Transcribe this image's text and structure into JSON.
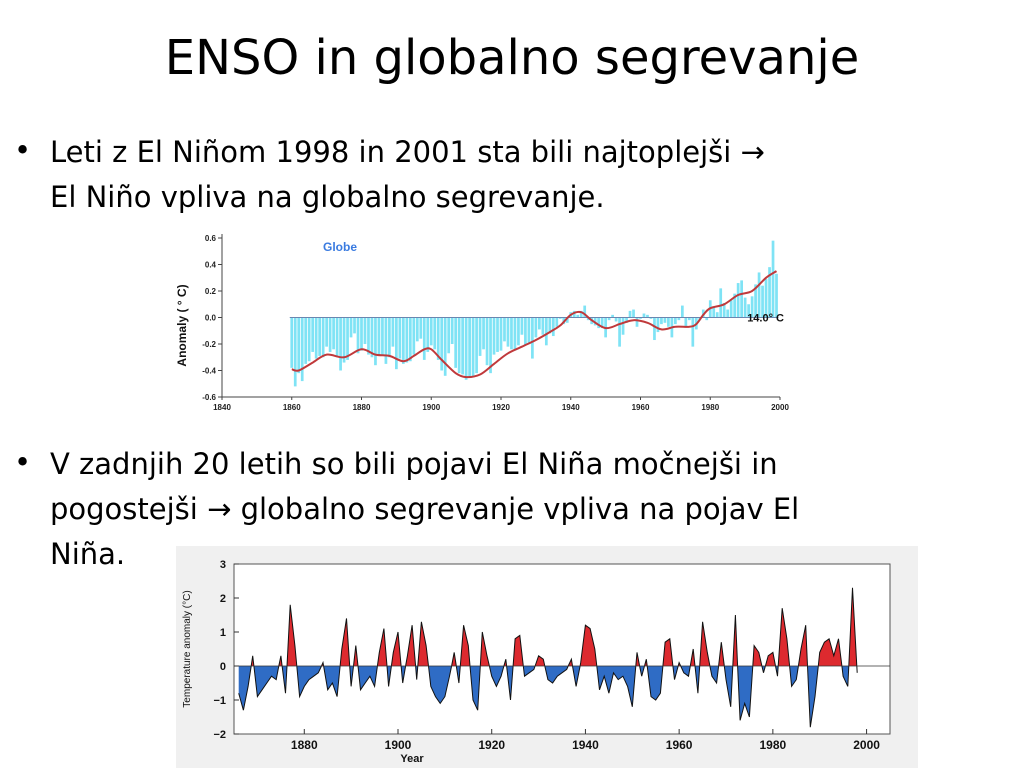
{
  "slide": {
    "title": "ENSO in globalno segrevanje",
    "bullets": [
      {
        "line1": "Leti z El Niñom 1998 in 2001 sta bili najtoplejši →",
        "line2": "El Niño vpliva na globalno segrevanje."
      },
      {
        "line1": "V zadnjih 20 letih so bili pojavi El Niña močnejši in",
        "line2": "pogostejši → globalno segrevanje vpliva na pojav El",
        "line3": "Niña."
      }
    ],
    "bullet_symbol": "•"
  },
  "chart_data": [
    {
      "type": "bar",
      "title": "Globe",
      "ylabel": "Anomaly  ( ° C)",
      "reference_label": "14.0° C",
      "xlim": [
        1840,
        2000
      ],
      "ylim": [
        -0.6,
        0.6
      ],
      "x_ticks": [
        1840,
        1860,
        1880,
        1900,
        1920,
        1940,
        1960,
        1980,
        2000
      ],
      "y_ticks": [
        -0.6,
        -0.4,
        -0.2,
        0.0,
        0.2,
        0.4,
        0.6
      ],
      "x_tick_labels": [
        "1840",
        "1860",
        "1880",
        "1900",
        "1920",
        "1940",
        "1960",
        "1980",
        "2000"
      ],
      "y_tick_labels": [
        "-0.6",
        "-0.4",
        "-0.2",
        "0.0",
        "0.2",
        "0.4",
        "0.6"
      ],
      "bar_color": "#7fe3f5",
      "smooth_color": "#c0393b",
      "bar_series": {
        "x_start": 1860,
        "x_end": 1999,
        "values": [
          -0.38,
          -0.52,
          -0.42,
          -0.48,
          -0.35,
          -0.33,
          -0.26,
          -0.31,
          -0.29,
          -0.3,
          -0.22,
          -0.26,
          -0.24,
          -0.3,
          -0.4,
          -0.34,
          -0.32,
          -0.15,
          -0.12,
          -0.27,
          -0.25,
          -0.2,
          -0.28,
          -0.3,
          -0.36,
          -0.28,
          -0.29,
          -0.35,
          -0.3,
          -0.22,
          -0.39,
          -0.31,
          -0.35,
          -0.34,
          -0.33,
          -0.28,
          -0.18,
          -0.16,
          -0.32,
          -0.26,
          -0.21,
          -0.24,
          -0.32,
          -0.4,
          -0.44,
          -0.27,
          -0.2,
          -0.38,
          -0.42,
          -0.43,
          -0.47,
          -0.45,
          -0.45,
          -0.42,
          -0.29,
          -0.24,
          -0.36,
          -0.42,
          -0.28,
          -0.26,
          -0.25,
          -0.18,
          -0.22,
          -0.24,
          -0.25,
          -0.21,
          -0.13,
          -0.21,
          -0.19,
          -0.31,
          -0.15,
          -0.09,
          -0.13,
          -0.21,
          -0.12,
          -0.14,
          -0.07,
          -0.01,
          -0.05,
          -0.04,
          0.04,
          0.05,
          0.02,
          0.05,
          0.09,
          -0.02,
          -0.05,
          -0.06,
          -0.08,
          -0.08,
          -0.15,
          -0.02,
          0.02,
          -0.03,
          -0.22,
          -0.13,
          -0.04,
          0.05,
          0.06,
          -0.07,
          -0.01,
          0.03,
          0.02,
          -0.01,
          -0.17,
          -0.11,
          -0.05,
          -0.04,
          -0.07,
          -0.15,
          -0.05,
          -0.02,
          0.09,
          -0.07,
          -0.02,
          -0.22,
          -0.09,
          -0.02,
          0.06,
          -0.02,
          0.13,
          0.08,
          0.04,
          0.22,
          0.11,
          0.06,
          0.13,
          0.18,
          0.26,
          0.28,
          0.15,
          0.1,
          0.16,
          0.25,
          0.34,
          0.24,
          0.29,
          0.38,
          0.58,
          0.33
        ]
      },
      "smooth_series": {
        "x": [
          1860,
          1862,
          1866,
          1870,
          1875,
          1880,
          1884,
          1888,
          1892,
          1895,
          1898,
          1900,
          1903,
          1907,
          1910,
          1914,
          1918,
          1922,
          1926,
          1930,
          1934,
          1937,
          1940,
          1943,
          1946,
          1950,
          1954,
          1958,
          1962,
          1966,
          1970,
          1974,
          1976,
          1978,
          1980,
          1984,
          1988,
          1992,
          1996,
          1999
        ],
        "y": [
          -0.39,
          -0.4,
          -0.34,
          -0.28,
          -0.3,
          -0.24,
          -0.28,
          -0.29,
          -0.33,
          -0.29,
          -0.24,
          -0.24,
          -0.32,
          -0.42,
          -0.45,
          -0.43,
          -0.35,
          -0.27,
          -0.22,
          -0.17,
          -0.11,
          -0.06,
          0.02,
          0.04,
          -0.02,
          -0.08,
          -0.05,
          -0.02,
          -0.04,
          -0.09,
          -0.07,
          -0.07,
          -0.05,
          0.02,
          0.07,
          0.1,
          0.17,
          0.2,
          0.3,
          0.35
        ]
      }
    },
    {
      "type": "area",
      "xlabel": "Year",
      "ylabel": "Temperature anomaly  (°C)",
      "xlim": [
        1865,
        2005
      ],
      "ylim": [
        -2,
        3
      ],
      "x_ticks": [
        1880,
        1900,
        1920,
        1940,
        1960,
        1980,
        2000
      ],
      "y_ticks": [
        -2,
        -1,
        0,
        1,
        2,
        3
      ],
      "x_tick_labels": [
        "1880",
        "1900",
        "1920",
        "1940",
        "1960",
        "1980",
        "2000"
      ],
      "y_tick_labels": [
        "−2",
        "−1",
        "0",
        "1",
        "2",
        "3"
      ],
      "positive_color": "#dd2a2f",
      "negative_color": "#2f6cc5",
      "series": {
        "x": [
          1866,
          1867,
          1868,
          1869,
          1870,
          1871,
          1872,
          1873,
          1874,
          1875,
          1876,
          1877,
          1878,
          1879,
          1880,
          1881,
          1882,
          1883,
          1884,
          1885,
          1886,
          1887,
          1888,
          1889,
          1890,
          1891,
          1892,
          1893,
          1894,
          1895,
          1896,
          1897,
          1898,
          1899,
          1900,
          1901,
          1902,
          1903,
          1904,
          1905,
          1906,
          1907,
          1908,
          1909,
          1910,
          1911,
          1912,
          1913,
          1914,
          1915,
          1916,
          1917,
          1918,
          1919,
          1920,
          1921,
          1922,
          1923,
          1924,
          1925,
          1926,
          1927,
          1928,
          1929,
          1930,
          1931,
          1932,
          1933,
          1934,
          1935,
          1936,
          1937,
          1938,
          1939,
          1940,
          1941,
          1942,
          1943,
          1944,
          1945,
          1946,
          1947,
          1948,
          1949,
          1950,
          1951,
          1952,
          1953,
          1954,
          1955,
          1956,
          1957,
          1958,
          1959,
          1960,
          1961,
          1962,
          1963,
          1964,
          1965,
          1966,
          1967,
          1968,
          1969,
          1970,
          1971,
          1972,
          1973,
          1974,
          1975,
          1976,
          1977,
          1978,
          1979,
          1980,
          1981,
          1982,
          1983,
          1984,
          1985,
          1986,
          1987,
          1988,
          1989,
          1990,
          1991,
          1992,
          1993,
          1994,
          1995,
          1996,
          1997,
          1998
        ],
        "y": [
          -0.8,
          -1.3,
          -0.6,
          0.3,
          -0.9,
          -0.7,
          -0.5,
          -0.3,
          -0.4,
          0.3,
          -0.8,
          1.8,
          0.6,
          -0.9,
          -0.6,
          -0.4,
          -0.3,
          -0.2,
          0.1,
          -0.7,
          -0.5,
          -0.9,
          0.5,
          1.4,
          -0.6,
          0.6,
          -0.7,
          -0.5,
          -0.3,
          -0.6,
          0.4,
          1.1,
          -0.6,
          0.4,
          1.0,
          -0.5,
          0.3,
          1.2,
          -0.4,
          1.3,
          0.6,
          -0.6,
          -0.9,
          -1.1,
          -0.9,
          -0.3,
          0.4,
          -0.5,
          1.2,
          0.6,
          -1.0,
          -1.3,
          1.0,
          0.3,
          -0.3,
          -0.6,
          -0.3,
          0.2,
          -1.0,
          0.8,
          0.9,
          -0.3,
          -0.2,
          -0.1,
          0.3,
          0.2,
          -0.4,
          -0.5,
          -0.3,
          -0.2,
          -0.1,
          0.2,
          -0.6,
          0.1,
          1.2,
          1.1,
          0.5,
          -0.7,
          -0.3,
          -0.8,
          -0.2,
          -0.4,
          -0.3,
          -0.6,
          -1.2,
          0.4,
          -0.3,
          0.2,
          -0.9,
          -1.0,
          -0.8,
          0.7,
          0.8,
          -0.4,
          0.1,
          -0.2,
          -0.3,
          0.5,
          -0.8,
          1.3,
          0.4,
          -0.3,
          -0.5,
          0.7,
          -0.4,
          -1.2,
          1.5,
          -1.6,
          -1.1,
          -1.5,
          0.6,
          0.4,
          -0.2,
          0.3,
          0.4,
          -0.3,
          1.7,
          0.8,
          -0.6,
          -0.4,
          0.5,
          1.2,
          -1.8,
          -0.9,
          0.4,
          0.7,
          0.8,
          0.3,
          0.8,
          -0.3,
          -0.6,
          2.3,
          -0.2
        ]
      }
    }
  ]
}
